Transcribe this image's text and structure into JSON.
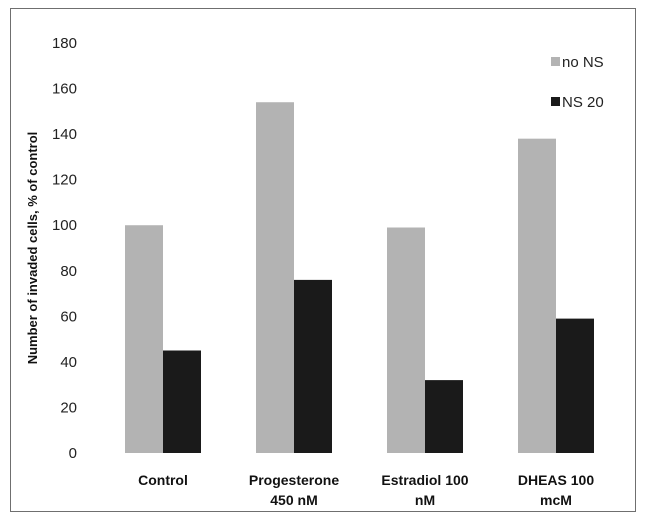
{
  "chart_data": {
    "type": "bar",
    "title": "",
    "xlabel": "",
    "ylabel": "Number of invaded cells, % of control",
    "ylim": [
      0,
      180
    ],
    "y_ticks": [
      0,
      20,
      40,
      60,
      80,
      100,
      120,
      140,
      160,
      180
    ],
    "categories": [
      [
        "Control"
      ],
      [
        "Progesterone",
        "450 nM"
      ],
      [
        "Estradiol 100",
        "nM"
      ],
      [
        "DHEAS 100",
        "mcM"
      ]
    ],
    "series": [
      {
        "name": "no NS",
        "color": "#b3b3b3",
        "values": [
          100,
          154,
          99,
          138
        ]
      },
      {
        "name": "NS 20",
        "color": "#1a1a1a",
        "values": [
          45,
          76,
          32,
          59
        ]
      }
    ],
    "grid": false,
    "legend_position": "top-right"
  }
}
